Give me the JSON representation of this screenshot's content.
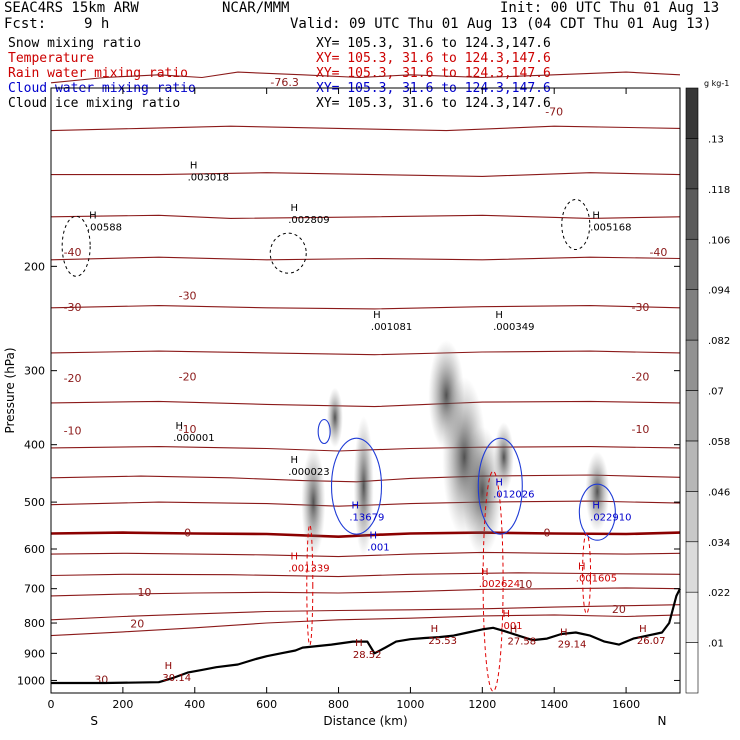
{
  "header": {
    "model": "SEAC4RS 15km ARW",
    "center": "NCAR/MMM",
    "init": "Init: 00 UTC Thu 01 Aug 13",
    "fcst_label": "Fcst:",
    "fcst_value": "9 h",
    "valid": "Valid: 09 UTC Thu 01 Aug 13 (04 CDT Thu 01 Aug 13)"
  },
  "fields": [
    {
      "name": "Snow mixing ratio",
      "xy": "XY= 105.3, 31.6 to 124.3,147.6",
      "color": "#000000"
    },
    {
      "name": "Temperature",
      "xy": "XY= 105.3, 31.6 to 124.3,147.6",
      "color": "#cc0000"
    },
    {
      "name": "Rain water mixing ratio",
      "xy": "XY= 105.3, 31.6 to 124.3,147.6",
      "color": "#cc0000"
    },
    {
      "name": "Cloud water mixing ratio",
      "xy": "XY= 105.3, 31.6 to 124.3,147.6",
      "color": "#0000cc"
    },
    {
      "name": "Cloud ice mixing ratio",
      "xy": "XY= 105.3, 31.6 to 124.3,147.6",
      "color": "#000000"
    }
  ],
  "chart_data": {
    "type": "line",
    "xlabel": "Distance (km)",
    "ylabel": "Pressure (hPa)",
    "x_ticks": [
      0,
      200,
      400,
      600,
      800,
      1000,
      1200,
      1400,
      1600
    ],
    "y_ticks": [
      200,
      300,
      400,
      500,
      600,
      700,
      800,
      900,
      1000
    ],
    "xlim": [
      0,
      1750
    ],
    "ylim": [
      1050,
      100
    ],
    "y_scale": "log",
    "x_ends": {
      "left": "S",
      "right": "N"
    },
    "colorbar": {
      "unit": "g kg-1",
      "labels": [
        ".01",
        ".022",
        ".034",
        ".046",
        ".058",
        ".07",
        ".082",
        ".094",
        ".106",
        ".118",
        ".13"
      ]
    },
    "temperature_isotherms": [
      {
        "label": "-76.3"
      },
      {
        "label": "-70"
      },
      {
        "label": "-40"
      },
      {
        "label": "-30"
      },
      {
        "label": "-20"
      },
      {
        "label": "-10"
      },
      {
        "label": "0"
      },
      {
        "label": "10"
      },
      {
        "label": "20"
      },
      {
        "label": "30"
      }
    ],
    "terrain_surface_pressure": [
      [
        0,
        1010
      ],
      [
        150,
        1010
      ],
      [
        300,
        1007
      ],
      [
        340,
        990
      ],
      [
        380,
        970
      ],
      [
        420,
        960
      ],
      [
        460,
        950
      ],
      [
        520,
        940
      ],
      [
        570,
        920
      ],
      [
        600,
        910
      ],
      [
        640,
        900
      ],
      [
        680,
        890
      ],
      [
        700,
        880
      ],
      [
        740,
        875
      ],
      [
        780,
        870
      ],
      [
        810,
        865
      ],
      [
        840,
        860
      ],
      [
        880,
        860
      ],
      [
        900,
        900
      ],
      [
        930,
        880
      ],
      [
        960,
        860
      ],
      [
        1000,
        852
      ],
      [
        1040,
        848
      ],
      [
        1080,
        845
      ],
      [
        1120,
        840
      ],
      [
        1160,
        830
      ],
      [
        1200,
        820
      ],
      [
        1230,
        815
      ],
      [
        1260,
        825
      ],
      [
        1300,
        840
      ],
      [
        1340,
        855
      ],
      [
        1380,
        850
      ],
      [
        1420,
        835
      ],
      [
        1460,
        830
      ],
      [
        1500,
        840
      ],
      [
        1540,
        860
      ],
      [
        1580,
        870
      ],
      [
        1620,
        850
      ],
      [
        1660,
        840
      ],
      [
        1700,
        830
      ],
      [
        1720,
        800
      ],
      [
        1740,
        720
      ],
      [
        1750,
        700
      ]
    ],
    "annotations": [
      {
        "label": ".003018",
        "color": "#000000",
        "x": 380,
        "p": 140
      },
      {
        "label": ".00588",
        "color": "#000000",
        "x": 100,
        "p": 170
      },
      {
        "label": ".002809",
        "color": "#000000",
        "x": 660,
        "p": 165
      },
      {
        "label": ".005168",
        "color": "#000000",
        "x": 1500,
        "p": 170
      },
      {
        "label": ".001081",
        "color": "#000000",
        "x": 890,
        "p": 250
      },
      {
        "label": ".000349",
        "color": "#000000",
        "x": 1230,
        "p": 250
      },
      {
        "label": ".000001",
        "color": "#000000",
        "x": 340,
        "p": 385
      },
      {
        "label": ".000023",
        "color": "#000000",
        "x": 660,
        "p": 440
      },
      {
        "label": ".13679",
        "color": "#0000cc",
        "x": 830,
        "p": 525
      },
      {
        "label": ".012026",
        "color": "#0000cc",
        "x": 1230,
        "p": 480
      },
      {
        "label": ".022910",
        "color": "#0000cc",
        "x": 1500,
        "p": 525
      },
      {
        "label": ".001",
        "color": "#0000cc",
        "x": 880,
        "p": 590
      },
      {
        "label": ".001339",
        "color": "#cc0000",
        "x": 660,
        "p": 640
      },
      {
        "label": ".002624",
        "color": "#cc0000",
        "x": 1190,
        "p": 680
      },
      {
        "label": ".001605",
        "color": "#cc0000",
        "x": 1460,
        "p": 665
      },
      {
        "label": ".001",
        "color": "#cc0000",
        "x": 1250,
        "p": 800
      },
      {
        "label": "28.52",
        "color": "#8b0000",
        "x": 840,
        "p": 895
      },
      {
        "label": "25.53",
        "color": "#8b0000",
        "x": 1050,
        "p": 848
      },
      {
        "label": "27.58",
        "color": "#8b0000",
        "x": 1270,
        "p": 850
      },
      {
        "label": "29.14",
        "color": "#8b0000",
        "x": 1410,
        "p": 860
      },
      {
        "label": "26.07",
        "color": "#8b0000",
        "x": 1630,
        "p": 848
      },
      {
        "label": "30.14",
        "color": "#8b0000",
        "x": 310,
        "p": 980
      }
    ]
  }
}
